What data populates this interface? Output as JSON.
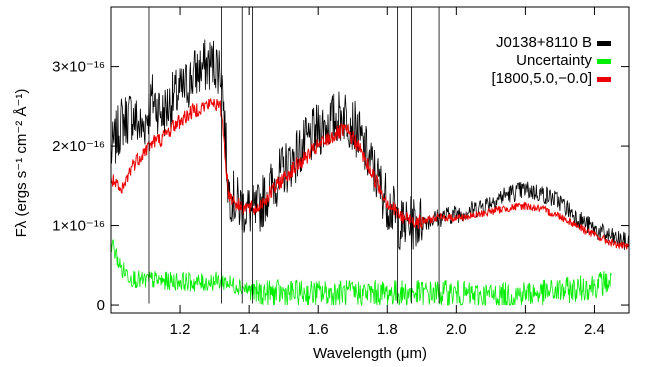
{
  "chart_data": {
    "type": "line",
    "title": "",
    "xlabel": "Wavelength (μm)",
    "ylabel": "Fλ (ergs s⁻¹ cm⁻² Å⁻¹)",
    "xlim": [
      1.0,
      2.5
    ],
    "ylim": [
      -1e-17,
      3.75e-16
    ],
    "grid": false,
    "legend_position": "top-right",
    "x_ticks": [
      {
        "value": 1.2,
        "label": "1.2"
      },
      {
        "value": 1.4,
        "label": "1.4"
      },
      {
        "value": 1.6,
        "label": "1.6"
      },
      {
        "value": 1.8,
        "label": "1.8"
      },
      {
        "value": 2.0,
        "label": "2.0"
      },
      {
        "value": 2.2,
        "label": "2.2"
      },
      {
        "value": 2.4,
        "label": "2.4"
      }
    ],
    "y_ticks": [
      {
        "value": 0,
        "label": "0"
      },
      {
        "value": 1e-16,
        "label": "1×10⁻¹⁶"
      },
      {
        "value": 2e-16,
        "label": "2×10⁻¹⁶"
      },
      {
        "value": 3e-16,
        "label": "3×10⁻¹⁶"
      }
    ],
    "series": [
      {
        "name": "J0138+8110 B",
        "color": "#000000",
        "x": [
          1.0,
          1.03,
          1.06,
          1.09,
          1.12,
          1.15,
          1.18,
          1.21,
          1.24,
          1.27,
          1.3,
          1.32,
          1.34,
          1.37,
          1.42,
          1.45,
          1.5,
          1.55,
          1.6,
          1.65,
          1.68,
          1.71,
          1.75,
          1.8,
          1.84,
          1.9,
          1.95,
          2.0,
          2.05,
          2.1,
          2.15,
          2.2,
          2.25,
          2.3,
          2.35,
          2.4,
          2.45,
          2.5
        ],
        "y": [
          1.9e-16,
          2.3e-16,
          2.4e-16,
          2.2e-16,
          2.6e-16,
          2.4e-16,
          2.6e-16,
          2.7e-16,
          2.9e-16,
          3e-16,
          3.05e-16,
          2.95e-16,
          1.45e-16,
          1.25e-16,
          1.15e-16,
          1.4e-16,
          1.7e-16,
          1.95e-16,
          2.2e-16,
          2.35e-16,
          2.4e-16,
          2.2e-16,
          1.8e-16,
          1.3e-16,
          1e-16,
          1.05e-16,
          1.1e-16,
          1.15e-16,
          1.2e-16,
          1.3e-16,
          1.4e-16,
          1.45e-16,
          1.4e-16,
          1.3e-16,
          1.1e-16,
          9.5e-17,
          8.5e-17,
          7.8e-17
        ]
      },
      {
        "name": "Uncertainty",
        "color": "#00ee00",
        "x": [
          1.0,
          1.03,
          1.06,
          1.09,
          1.12,
          1.15,
          1.18,
          1.21,
          1.24,
          1.27,
          1.3,
          1.33,
          1.35,
          1.37,
          1.42,
          1.45,
          1.5,
          1.55,
          1.6,
          1.65,
          1.7,
          1.75,
          1.8,
          1.84,
          1.9,
          1.95,
          2.0,
          2.05,
          2.1,
          2.15,
          2.2,
          2.25,
          2.3,
          2.35,
          2.4,
          2.45
        ],
        "y": [
          8e-17,
          4.5e-17,
          3.5e-17,
          3e-17,
          3.2e-17,
          3e-17,
          3e-17,
          3e-17,
          2.8e-17,
          2.8e-17,
          3e-17,
          3e-17,
          2.5e-17,
          2.5e-17,
          1.5e-17,
          1.5e-17,
          1.5e-17,
          1.5e-17,
          1.5e-17,
          1.5e-17,
          1.5e-17,
          1.5e-17,
          1.5e-17,
          1.5e-17,
          1.5e-17,
          1.5e-17,
          1.5e-17,
          1.2e-17,
          1.2e-17,
          1.2e-17,
          1.5e-17,
          1.5e-17,
          1.8e-17,
          2e-17,
          2.5e-17,
          3e-17
        ]
      },
      {
        "name": "[1800,5.0,−0.0]",
        "color": "#ee0000",
        "x": [
          1.0,
          1.03,
          1.06,
          1.09,
          1.12,
          1.15,
          1.18,
          1.21,
          1.24,
          1.27,
          1.3,
          1.32,
          1.34,
          1.37,
          1.42,
          1.45,
          1.5,
          1.55,
          1.6,
          1.65,
          1.68,
          1.71,
          1.75,
          1.8,
          1.84,
          1.9,
          1.95,
          2.0,
          2.05,
          2.1,
          2.15,
          2.2,
          2.25,
          2.3,
          2.35,
          2.4,
          2.45,
          2.5
        ],
        "y": [
          1.6e-16,
          1.4e-16,
          1.75e-16,
          1.9e-16,
          2.05e-16,
          2.1e-16,
          2.25e-16,
          2.35e-16,
          2.45e-16,
          2.5e-16,
          2.55e-16,
          2.45e-16,
          1.4e-16,
          1.25e-16,
          1.2e-16,
          1.35e-16,
          1.6e-16,
          1.8e-16,
          2e-16,
          2.15e-16,
          2.2e-16,
          2.05e-16,
          1.7e-16,
          1.3e-16,
          1.1e-16,
          1.05e-16,
          1.1e-16,
          1.1e-16,
          1.12e-16,
          1.18e-16,
          1.22e-16,
          1.25e-16,
          1.2e-16,
          1.12e-16,
          1e-16,
          8.8e-17,
          7.8e-17,
          7.2e-17
        ]
      }
    ],
    "vertical_lines_x": [
      1.11,
      1.32,
      1.38,
      1.41,
      1.83,
      1.87,
      1.95
    ]
  }
}
